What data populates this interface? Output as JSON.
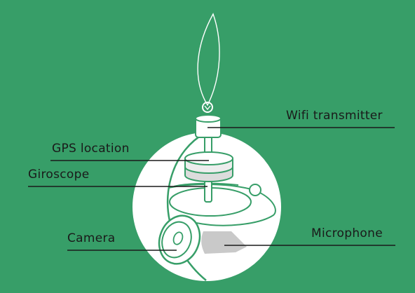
{
  "colors": {
    "background": "#379e68",
    "device_fill": "#ffffff",
    "outline": "#379e68",
    "shadow": "#c9c9c9",
    "label_text": "#1a1a1a",
    "leader_line": "#1a1a1a"
  },
  "labels": {
    "wifi": "Wifi transmitter",
    "gps": "GPS location",
    "giroscope": "Giroscope",
    "camera": "Camera",
    "microphone": "Microphone"
  }
}
